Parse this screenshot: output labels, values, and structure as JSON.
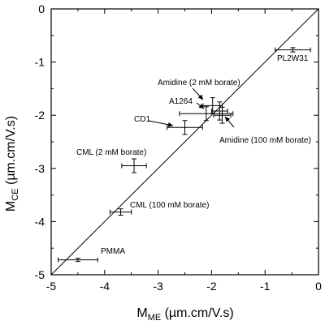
{
  "chart_data": {
    "type": "scatter",
    "xlabel": {
      "main": "M",
      "sub": "ME",
      "unit": " (µm.cm/V.s)"
    },
    "ylabel": {
      "main": "M",
      "sub": "CE",
      "unit": " (µm.cm/V.s)"
    },
    "xlim": [
      -5,
      0
    ],
    "ylim": [
      -5,
      0
    ],
    "x_ticks": [
      "-5",
      "-4",
      "-3",
      "-2",
      "-1",
      "0"
    ],
    "y_ticks": [
      "0",
      "-1",
      "-2",
      "-3",
      "-4",
      "-5"
    ],
    "grid": false,
    "legend": "none",
    "reference_line": {
      "description": "y = x",
      "from": [
        -5,
        -5
      ],
      "to": [
        0,
        0
      ]
    },
    "points": [
      {
        "label": "PL2W31",
        "x": -0.48,
        "y": -0.77,
        "xerr": 0.33,
        "yerr": 0.04
      },
      {
        "label": "Amidine (2 mM borate)",
        "x": -1.98,
        "y": -1.82,
        "xerr": 0.18,
        "yerr": 0.15
      },
      {
        "label": "A1264",
        "x": -2.1,
        "y": -1.97,
        "xerr": 0.5,
        "yerr": 0.13
      },
      {
        "label": "",
        "x": -1.85,
        "y": -1.92,
        "xerr": 0.15,
        "yerr": 0.17
      },
      {
        "label": "Amidine (100 mM borate)",
        "x": -1.8,
        "y": -2.0,
        "xerr": 0.16,
        "yerr": 0.15
      },
      {
        "label": "CD1",
        "x": -2.5,
        "y": -2.23,
        "xerr": 0.33,
        "yerr": 0.13
      },
      {
        "label": "CML (2 mM borate)",
        "x": -3.45,
        "y": -2.95,
        "xerr": 0.23,
        "yerr": 0.13
      },
      {
        "label": "CML (100 mM borate)",
        "x": -3.7,
        "y": -3.82,
        "xerr": 0.2,
        "yerr": 0.06
      },
      {
        "label": "PMMA",
        "x": -4.5,
        "y": -4.72,
        "xerr": 0.37,
        "yerr": 0.03
      }
    ],
    "annotations": [
      {
        "text": "PL2W31"
      },
      {
        "text": "Amidine (2 mM borate)"
      },
      {
        "text": "A1264"
      },
      {
        "text": "CD1"
      },
      {
        "text": "Amidine (100 mM borate)"
      },
      {
        "text": "CML (2 mM borate)"
      },
      {
        "text": "CML (100 mM borate)"
      },
      {
        "text": "PMMA"
      }
    ]
  }
}
